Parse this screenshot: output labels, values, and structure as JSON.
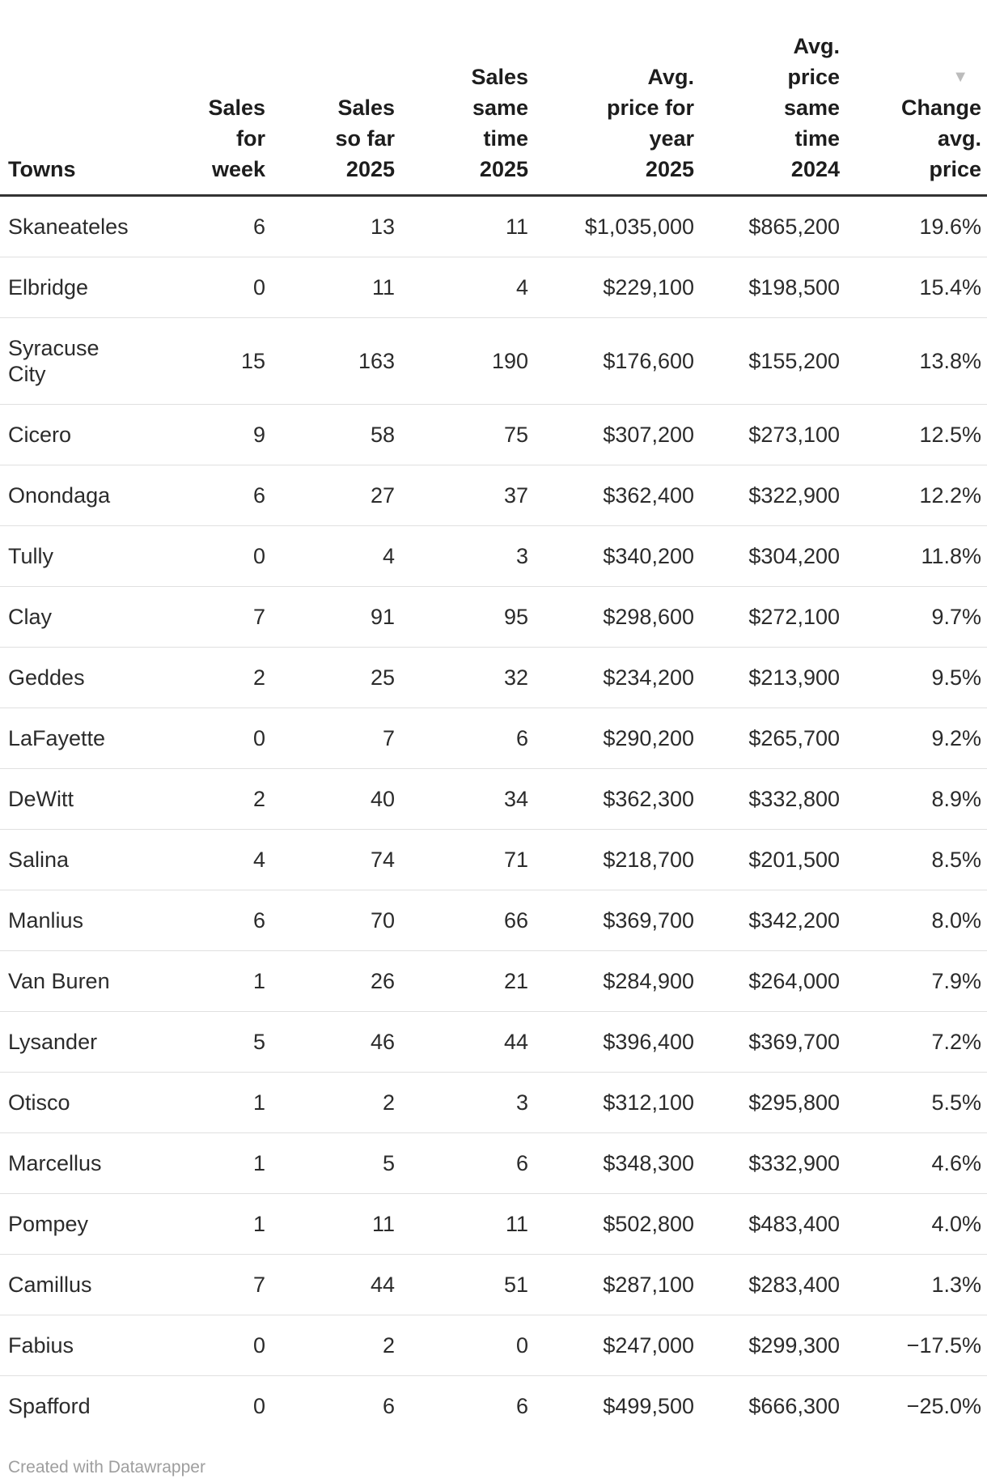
{
  "chart_data": {
    "type": "table",
    "columns": [
      {
        "id": "town",
        "label_lines": [
          "Towns"
        ],
        "align": "left"
      },
      {
        "id": "sales_week",
        "label_lines": [
          "Sales",
          "for",
          "week"
        ],
        "align": "right"
      },
      {
        "id": "sales_so_far",
        "label_lines": [
          "Sales",
          "so far",
          "2025"
        ],
        "align": "right"
      },
      {
        "id": "sales_same_time",
        "label_lines": [
          "Sales",
          "same",
          "time",
          "2025"
        ],
        "align": "right"
      },
      {
        "id": "avg_price_2025",
        "label_lines": [
          "Avg.",
          "price for",
          "year",
          "2025"
        ],
        "align": "right"
      },
      {
        "id": "avg_price_2024",
        "label_lines": [
          "Avg.",
          "price",
          "same",
          "time",
          "2024"
        ],
        "align": "right"
      },
      {
        "id": "change_pct",
        "label_lines": [
          "Change",
          "avg.",
          "price"
        ],
        "align": "right",
        "sorted": "desc"
      }
    ],
    "sort": {
      "column": "change_pct",
      "direction": "desc"
    },
    "rows": [
      {
        "town": "Skaneateles",
        "sales_week": "6",
        "sales_so_far": "13",
        "sales_same_time": "11",
        "avg_price_2025": "$1,035,000",
        "avg_price_2024": "$865,200",
        "change_pct": "19.6%"
      },
      {
        "town": "Elbridge",
        "sales_week": "0",
        "sales_so_far": "11",
        "sales_same_time": "4",
        "avg_price_2025": "$229,100",
        "avg_price_2024": "$198,500",
        "change_pct": "15.4%"
      },
      {
        "town": "Syracuse City",
        "sales_week": "15",
        "sales_so_far": "163",
        "sales_same_time": "190",
        "avg_price_2025": "$176,600",
        "avg_price_2024": "$155,200",
        "change_pct": "13.8%"
      },
      {
        "town": "Cicero",
        "sales_week": "9",
        "sales_so_far": "58",
        "sales_same_time": "75",
        "avg_price_2025": "$307,200",
        "avg_price_2024": "$273,100",
        "change_pct": "12.5%"
      },
      {
        "town": "Onondaga",
        "sales_week": "6",
        "sales_so_far": "27",
        "sales_same_time": "37",
        "avg_price_2025": "$362,400",
        "avg_price_2024": "$322,900",
        "change_pct": "12.2%"
      },
      {
        "town": "Tully",
        "sales_week": "0",
        "sales_so_far": "4",
        "sales_same_time": "3",
        "avg_price_2025": "$340,200",
        "avg_price_2024": "$304,200",
        "change_pct": "11.8%"
      },
      {
        "town": "Clay",
        "sales_week": "7",
        "sales_so_far": "91",
        "sales_same_time": "95",
        "avg_price_2025": "$298,600",
        "avg_price_2024": "$272,100",
        "change_pct": "9.7%"
      },
      {
        "town": "Geddes",
        "sales_week": "2",
        "sales_so_far": "25",
        "sales_same_time": "32",
        "avg_price_2025": "$234,200",
        "avg_price_2024": "$213,900",
        "change_pct": "9.5%"
      },
      {
        "town": "LaFayette",
        "sales_week": "0",
        "sales_so_far": "7",
        "sales_same_time": "6",
        "avg_price_2025": "$290,200",
        "avg_price_2024": "$265,700",
        "change_pct": "9.2%"
      },
      {
        "town": "DeWitt",
        "sales_week": "2",
        "sales_so_far": "40",
        "sales_same_time": "34",
        "avg_price_2025": "$362,300",
        "avg_price_2024": "$332,800",
        "change_pct": "8.9%"
      },
      {
        "town": "Salina",
        "sales_week": "4",
        "sales_so_far": "74",
        "sales_same_time": "71",
        "avg_price_2025": "$218,700",
        "avg_price_2024": "$201,500",
        "change_pct": "8.5%"
      },
      {
        "town": "Manlius",
        "sales_week": "6",
        "sales_so_far": "70",
        "sales_same_time": "66",
        "avg_price_2025": "$369,700",
        "avg_price_2024": "$342,200",
        "change_pct": "8.0%"
      },
      {
        "town": "Van Buren",
        "sales_week": "1",
        "sales_so_far": "26",
        "sales_same_time": "21",
        "avg_price_2025": "$284,900",
        "avg_price_2024": "$264,000",
        "change_pct": "7.9%"
      },
      {
        "town": "Lysander",
        "sales_week": "5",
        "sales_so_far": "46",
        "sales_same_time": "44",
        "avg_price_2025": "$396,400",
        "avg_price_2024": "$369,700",
        "change_pct": "7.2%"
      },
      {
        "town": "Otisco",
        "sales_week": "1",
        "sales_so_far": "2",
        "sales_same_time": "3",
        "avg_price_2025": "$312,100",
        "avg_price_2024": "$295,800",
        "change_pct": "5.5%"
      },
      {
        "town": "Marcellus",
        "sales_week": "1",
        "sales_so_far": "5",
        "sales_same_time": "6",
        "avg_price_2025": "$348,300",
        "avg_price_2024": "$332,900",
        "change_pct": "4.6%"
      },
      {
        "town": "Pompey",
        "sales_week": "1",
        "sales_so_far": "11",
        "sales_same_time": "11",
        "avg_price_2025": "$502,800",
        "avg_price_2024": "$483,400",
        "change_pct": "4.0%"
      },
      {
        "town": "Camillus",
        "sales_week": "7",
        "sales_so_far": "44",
        "sales_same_time": "51",
        "avg_price_2025": "$287,100",
        "avg_price_2024": "$283,400",
        "change_pct": "1.3%"
      },
      {
        "town": "Fabius",
        "sales_week": "0",
        "sales_so_far": "2",
        "sales_same_time": "0",
        "avg_price_2025": "$247,000",
        "avg_price_2024": "$299,300",
        "change_pct": "−17.5%"
      },
      {
        "town": "Spafford",
        "sales_week": "0",
        "sales_so_far": "6",
        "sales_same_time": "6",
        "avg_price_2025": "$499,500",
        "avg_price_2024": "$666,300",
        "change_pct": "−25.0%"
      }
    ]
  },
  "icons": {
    "sort_descending": "▼"
  },
  "colors": {
    "background": "#ffffff",
    "header_text": "#1d1d1d",
    "body_text": "#2b2b2b",
    "header_rule": "#333333",
    "row_divider": "#e0e0e0",
    "sort_icon": "#bcbcbc",
    "footer_text": "#9e9e9e"
  },
  "footer": {
    "credit": "Created with Datawrapper"
  }
}
